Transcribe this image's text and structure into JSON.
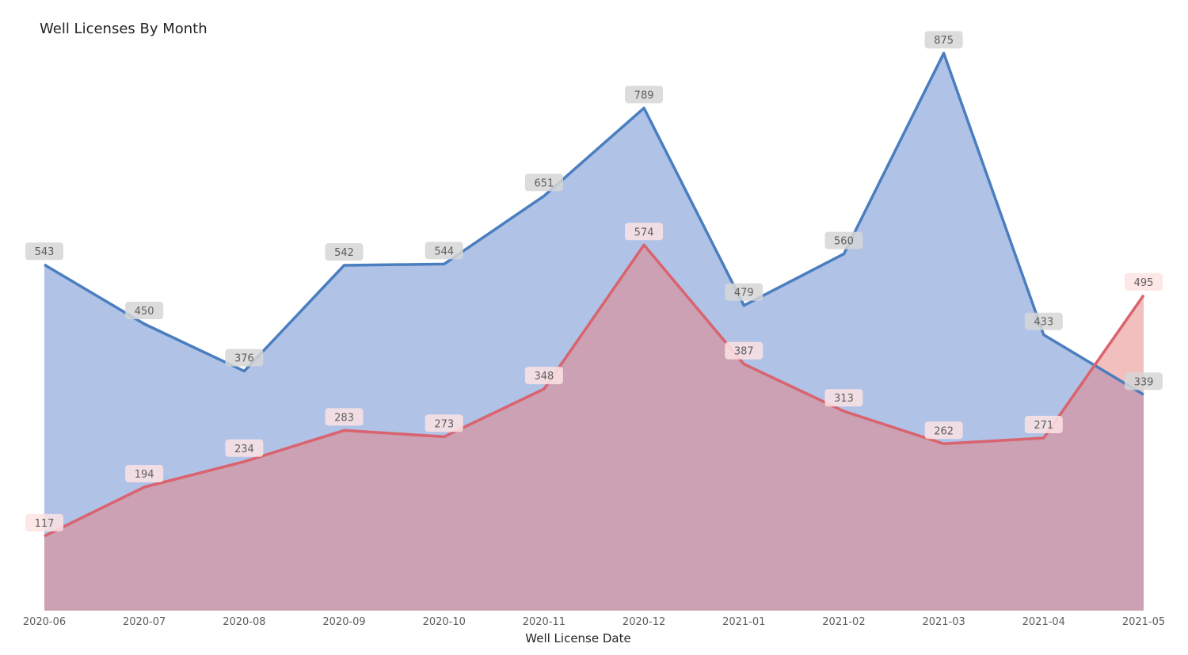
{
  "chart_data": {
    "type": "area",
    "title": "Well Licenses By Month",
    "xlabel": "Well License Date",
    "ylabel": "",
    "x": [
      "2020-06",
      "2020-07",
      "2020-08",
      "2020-09",
      "2020-10",
      "2020-11",
      "2020-12",
      "2021-01",
      "2021-02",
      "2021-03",
      "2021-04",
      "2021-05"
    ],
    "x_tick_labels": [
      "2020-06",
      "2020-07",
      "2020-08",
      "2020-09",
      "2020-10",
      "2020-11",
      "2020-12",
      "2021-01",
      "2021-02",
      "2021-03",
      "2021-04",
      "2021-05"
    ],
    "ylim": [
      0,
      920
    ],
    "grid": false,
    "legend": "none",
    "series": [
      {
        "values": [
          543,
          450,
          376,
          542,
          544,
          651,
          789,
          479,
          560,
          875,
          433,
          339
        ],
        "line_color": "#4a7ebf",
        "fill_color": "#8fa8db",
        "label_bg": "#d6d6d6"
      },
      {
        "values": [
          117,
          194,
          234,
          283,
          273,
          348,
          574,
          387,
          313,
          262,
          271,
          495
        ],
        "line_color": "#d9636e",
        "fill_color": "#e68080",
        "label_bg": "#fde3e3"
      }
    ]
  }
}
